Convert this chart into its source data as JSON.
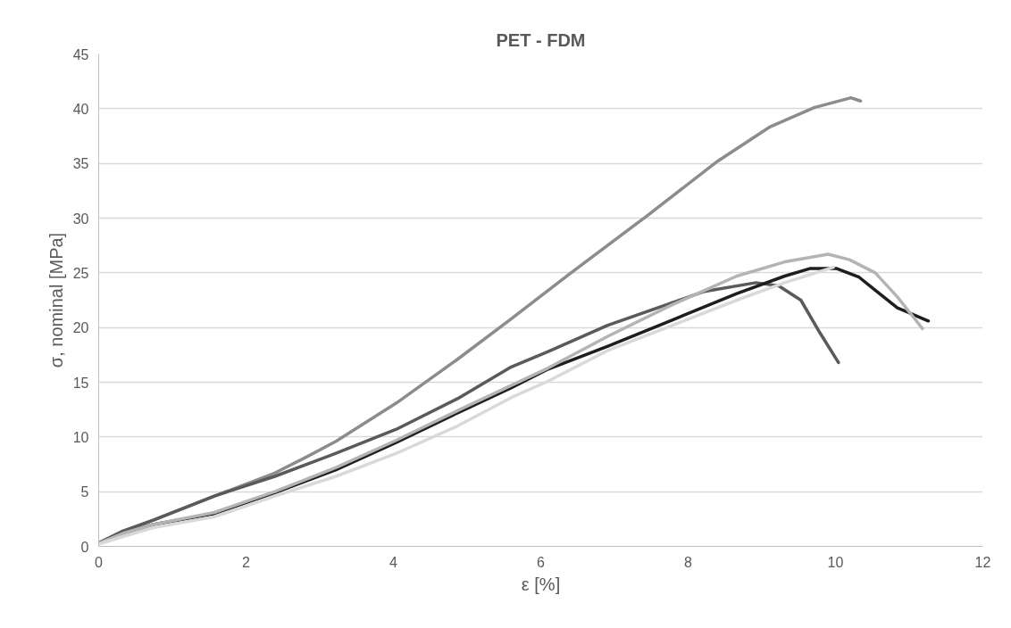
{
  "chart_data": {
    "type": "line",
    "title": "PET - FDM",
    "xlabel": "ε [%]",
    "ylabel": "σ, nominal [MPa]",
    "xlim": [
      0,
      12
    ],
    "xticks": [
      0,
      2,
      4,
      6,
      8,
      10,
      12
    ],
    "ylim": [
      0,
      45
    ],
    "yticks": [
      0,
      5,
      10,
      15,
      20,
      25,
      30,
      35,
      40,
      45
    ],
    "grid": "y",
    "marker": "none",
    "line_style": "solid",
    "series": [
      {
        "color": "#8c8c8c",
        "x": [
          0,
          0.33,
          0.74,
          1.57,
          2.39,
          2.8,
          3.22,
          4.04,
          4.87,
          5.6,
          6.39,
          7.44,
          8.4,
          9.1,
          9.71,
          10.21,
          10.34
        ],
        "values": [
          0.3,
          1.4,
          2.4,
          4.6,
          6.7,
          8.1,
          9.6,
          13.1,
          17.1,
          20.8,
          24.9,
          30.2,
          35.2,
          38.3,
          40.1,
          41.0,
          40.7
        ]
      },
      {
        "color": "#5a5a5a",
        "x": [
          0,
          0.33,
          0.74,
          1.57,
          2.39,
          3.22,
          4.04,
          4.87,
          5.6,
          6.1,
          6.91,
          8.22,
          8.92,
          9.23,
          9.53,
          9.79,
          10.04
        ],
        "values": [
          0.3,
          1.4,
          2.4,
          4.6,
          6.4,
          8.5,
          10.7,
          13.5,
          16.4,
          17.8,
          20.2,
          23.3,
          24.1,
          23.8,
          22.5,
          19.5,
          16.8
        ]
      },
      {
        "color": "#1e1e1e",
        "x": [
          0,
          0.33,
          0.74,
          1.57,
          2.39,
          3.22,
          4.04,
          4.87,
          5.6,
          6.1,
          6.91,
          7.79,
          8.66,
          9.31,
          9.66,
          10.01,
          10.32,
          10.54,
          10.84,
          11.26
        ],
        "values": [
          0.3,
          1.2,
          2.0,
          3.0,
          4.9,
          7.0,
          9.5,
          12.2,
          14.5,
          16.2,
          18.3,
          20.7,
          23.1,
          24.7,
          25.4,
          25.4,
          24.6,
          23.4,
          21.8,
          20.6
        ]
      },
      {
        "color": "#b4b4b4",
        "x": [
          0,
          0.33,
          0.74,
          1.57,
          2.39,
          3.22,
          4.04,
          4.87,
          6.1,
          6.91,
          7.79,
          8.66,
          9.31,
          9.9,
          10.19,
          10.54,
          10.84,
          11.18
        ],
        "values": [
          0.3,
          1.2,
          2.0,
          3.1,
          5.0,
          7.2,
          9.7,
          12.4,
          16.3,
          19.2,
          22.1,
          24.7,
          26.0,
          26.7,
          26.2,
          25.0,
          22.8,
          19.9
        ]
      },
      {
        "color": "#d9d9d9",
        "x": [
          0,
          0.33,
          0.74,
          1.57,
          2.39,
          3.22,
          4.04,
          4.87,
          5.6,
          6.1,
          6.91,
          7.79,
          8.66,
          9.31,
          9.97
        ],
        "values": [
          0.2,
          0.9,
          1.7,
          2.7,
          4.6,
          6.4,
          8.5,
          11.0,
          13.6,
          15.1,
          17.9,
          20.2,
          22.5,
          24.1,
          25.5
        ]
      }
    ]
  }
}
